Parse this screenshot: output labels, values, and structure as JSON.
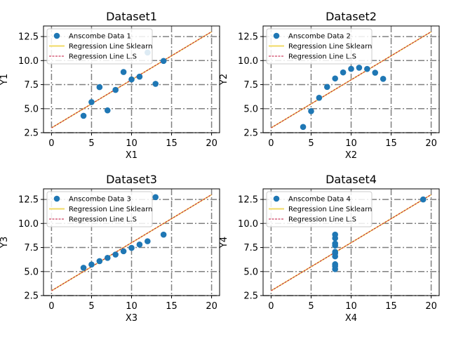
{
  "chart_data": [
    {
      "type": "scatter",
      "title": "Dataset1",
      "xlabel": "X1",
      "ylabel": "Y1",
      "xlim": [
        -1,
        21
      ],
      "ylim": [
        2.5,
        13.6
      ],
      "xticks": [
        0,
        5,
        10,
        15,
        20
      ],
      "yticks": [
        2.5,
        5.0,
        7.5,
        10.0,
        12.5
      ],
      "grid": true,
      "legend_position": "top-left",
      "series": [
        {
          "name": "Anscombe Data 1",
          "kind": "points",
          "color": "#1f77b4",
          "x": [
            10,
            8,
            13,
            9,
            11,
            14,
            6,
            4,
            12,
            7,
            5
          ],
          "y": [
            8.04,
            6.95,
            7.58,
            8.81,
            8.33,
            9.96,
            7.24,
            4.26,
            10.84,
            4.82,
            5.68
          ]
        },
        {
          "name": "Regression Line Sklearn",
          "kind": "line",
          "color": "#f1da64",
          "x": [
            0,
            20
          ],
          "y": [
            3.0,
            13.0
          ]
        },
        {
          "name": "Regression Line L.S",
          "kind": "dashed-line",
          "color": "#c0143c",
          "x": [
            0,
            20
          ],
          "y": [
            3.0,
            13.0
          ]
        }
      ]
    },
    {
      "type": "scatter",
      "title": "Dataset2",
      "xlabel": "X2",
      "ylabel": "Y2",
      "xlim": [
        -1,
        21
      ],
      "ylim": [
        2.5,
        13.6
      ],
      "xticks": [
        0,
        5,
        10,
        15,
        20
      ],
      "yticks": [
        2.5,
        5.0,
        7.5,
        10.0,
        12.5
      ],
      "grid": true,
      "legend_position": "top-left",
      "series": [
        {
          "name": "Anscombe Data 2",
          "kind": "points",
          "color": "#1f77b4",
          "x": [
            10,
            8,
            13,
            9,
            11,
            14,
            6,
            4,
            12,
            7,
            5
          ],
          "y": [
            9.14,
            8.14,
            8.74,
            8.77,
            9.26,
            8.1,
            6.13,
            3.1,
            9.13,
            7.26,
            4.74
          ]
        },
        {
          "name": "Regression Line Sklearn",
          "kind": "line",
          "color": "#f1da64",
          "x": [
            0,
            20
          ],
          "y": [
            3.0,
            13.0
          ]
        },
        {
          "name": "Regression Line L.S",
          "kind": "dashed-line",
          "color": "#c0143c",
          "x": [
            0,
            20
          ],
          "y": [
            3.0,
            13.0
          ]
        }
      ]
    },
    {
      "type": "scatter",
      "title": "Dataset3",
      "xlabel": "X3",
      "ylabel": "Y3",
      "xlim": [
        -1,
        21
      ],
      "ylim": [
        2.5,
        13.6
      ],
      "xticks": [
        0,
        5,
        10,
        15,
        20
      ],
      "yticks": [
        2.5,
        5.0,
        7.5,
        10.0,
        12.5
      ],
      "grid": true,
      "legend_position": "top-left",
      "series": [
        {
          "name": "Anscombe Data 3",
          "kind": "points",
          "color": "#1f77b4",
          "x": [
            10,
            8,
            13,
            9,
            11,
            14,
            6,
            4,
            12,
            7,
            5
          ],
          "y": [
            7.46,
            6.77,
            12.74,
            7.11,
            7.81,
            8.84,
            6.08,
            5.39,
            8.15,
            6.42,
            5.73
          ]
        },
        {
          "name": "Regression Line Sklearn",
          "kind": "line",
          "color": "#f1da64",
          "x": [
            0,
            20
          ],
          "y": [
            3.0,
            13.0
          ]
        },
        {
          "name": "Regression Line L.S",
          "kind": "dashed-line",
          "color": "#c0143c",
          "x": [
            0,
            20
          ],
          "y": [
            3.0,
            13.0
          ]
        }
      ]
    },
    {
      "type": "scatter",
      "title": "Dataset4",
      "xlabel": "X4",
      "ylabel": "Y4",
      "xlim": [
        -1,
        21
      ],
      "ylim": [
        2.5,
        13.6
      ],
      "xticks": [
        0,
        5,
        10,
        15,
        20
      ],
      "yticks": [
        2.5,
        5.0,
        7.5,
        10.0,
        12.5
      ],
      "grid": true,
      "legend_position": "top-left",
      "series": [
        {
          "name": "Anscombe Data 4",
          "kind": "points",
          "color": "#1f77b4",
          "x": [
            8,
            8,
            8,
            8,
            8,
            8,
            8,
            19,
            8,
            8,
            8
          ],
          "y": [
            6.58,
            5.76,
            7.71,
            8.84,
            8.47,
            7.04,
            5.25,
            12.5,
            5.56,
            7.91,
            6.89
          ]
        },
        {
          "name": "Regression Line Sklearn",
          "kind": "line",
          "color": "#f1da64",
          "x": [
            0,
            20
          ],
          "y": [
            3.0,
            13.0
          ]
        },
        {
          "name": "Regression Line L.S",
          "kind": "dashed-line",
          "color": "#c0143c",
          "x": [
            0,
            20
          ],
          "y": [
            3.0,
            13.0
          ]
        }
      ]
    }
  ]
}
